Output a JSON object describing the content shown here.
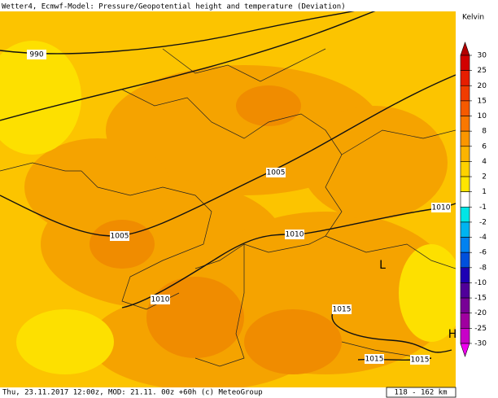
{
  "header": {
    "title": "Wetter4, Ecmwf-Model: Pressure/Geopotential height and temperature (Deviation)"
  },
  "legend": {
    "unit": "Kelvin",
    "ticks": [
      30,
      25,
      20,
      15,
      10,
      8,
      6,
      4,
      2,
      1,
      -1,
      -2,
      -4,
      -6,
      -8,
      -10,
      -15,
      -20,
      -25,
      -30
    ],
    "colors": [
      "#b40000",
      "#d20000",
      "#e61e00",
      "#f03c00",
      "#f55a00",
      "#fa7800",
      "#fa9600",
      "#fcb400",
      "#fdd200",
      "#ffe600",
      "#ffffff",
      "#00e6e6",
      "#00b4f0",
      "#0082f0",
      "#0050dc",
      "#1e00b4",
      "#50009a",
      "#780096",
      "#a000a0",
      "#c800c8",
      "#f000f0"
    ]
  },
  "map": {
    "isobar_labels": [
      "990",
      "1005",
      "1005",
      "1010",
      "1010",
      "1010",
      "1015",
      "1015",
      "1015"
    ],
    "low": "L",
    "high": "H"
  },
  "footer": {
    "info": "Thu, 23.11.2017 12:00z, MOD: 21.11. 00z +60h (c) MeteoGroup",
    "scale": "118 - 162 km"
  }
}
